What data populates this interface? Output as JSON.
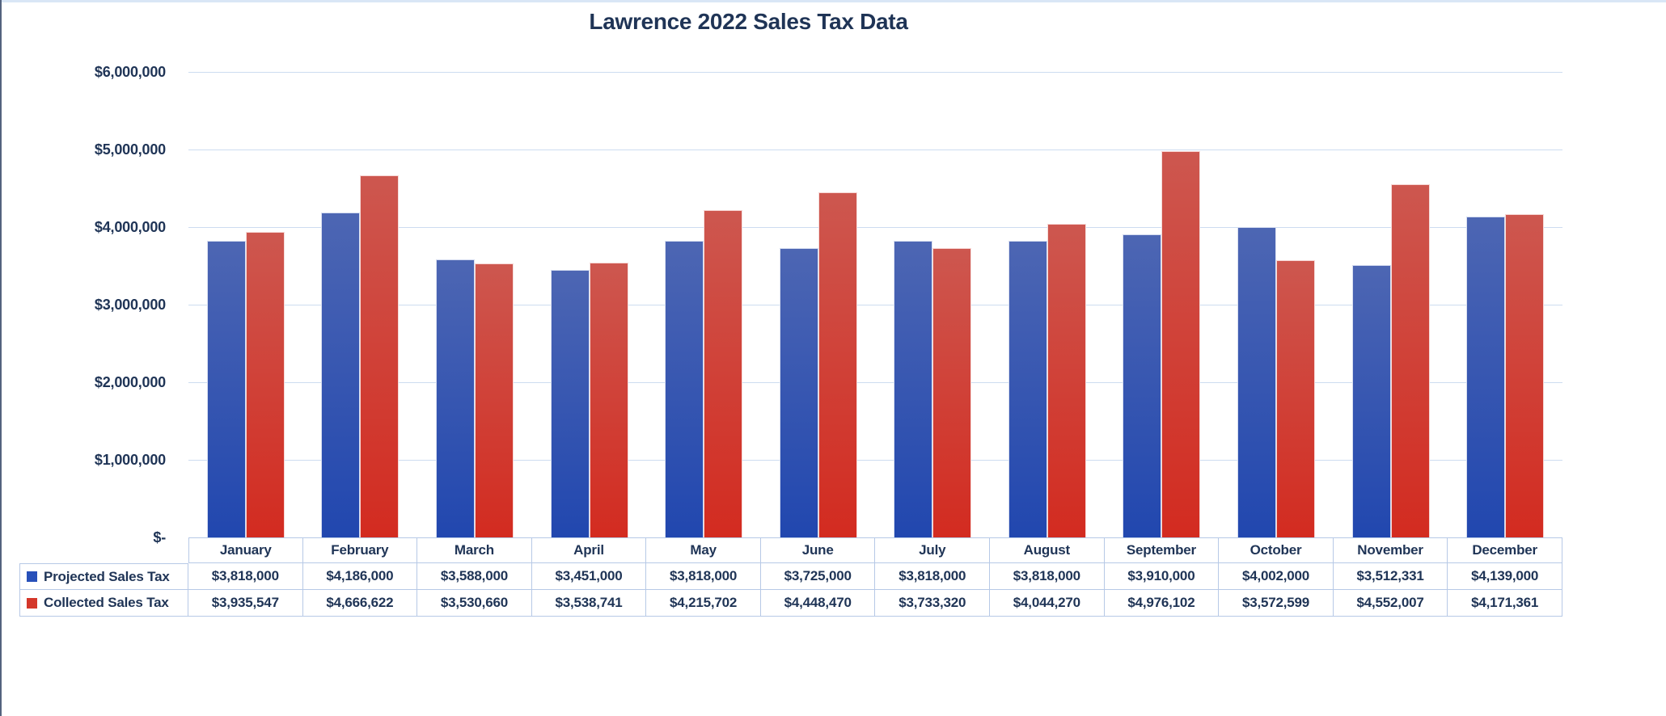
{
  "window": {
    "top_edge_color": "#d9e6f6",
    "left_edge_color": "#54637e",
    "background": "#ffffff"
  },
  "text_color": "#1f3456",
  "chart_data": {
    "type": "bar",
    "title": "Lawrence 2022 Sales Tax Data",
    "categories": [
      "January",
      "February",
      "March",
      "April",
      "May",
      "June",
      "July",
      "August",
      "September",
      "October",
      "November",
      "December"
    ],
    "series": [
      {
        "name": "Projected Sales Tax",
        "color": "#2850b9",
        "gradient_top": "#4d66b3",
        "gradient_bottom": "#2147af",
        "values": [
          3818000,
          4186000,
          3588000,
          3451000,
          3818000,
          3725000,
          3818000,
          3818000,
          3910000,
          4002000,
          3512331,
          4139000
        ]
      },
      {
        "name": "Collected Sales Tax",
        "color": "#d4372a",
        "gradient_top": "#cd574f",
        "gradient_bottom": "#d32b20",
        "values": [
          3935547,
          4666622,
          3530660,
          3538741,
          4215702,
          4448470,
          3733320,
          4044270,
          4976102,
          3572599,
          4552007,
          4171361
        ]
      }
    ],
    "ylim": [
      0,
      6000000
    ],
    "ytick_step": 1000000,
    "ytick_labels": [
      "$-",
      "$1,000,000",
      "$2,000,000",
      "$3,000,000",
      "$4,000,000",
      "$5,000,000",
      "$6,000,000"
    ],
    "grid": true,
    "gridline_color": "#cddcf0",
    "legend_position": "data-table-left"
  },
  "data_table": {
    "border_color": "#b7c9e6",
    "row_labels": [
      "Projected Sales Tax",
      "Collected Sales Tax"
    ],
    "formatted_rows": [
      [
        "$3,818,000",
        "$4,186,000",
        "$3,588,000",
        "$3,451,000",
        "$3,818,000",
        "$3,725,000",
        "$3,818,000",
        "$3,818,000",
        "$3,910,000",
        "$4,002,000",
        "$3,512,331",
        "$4,139,000"
      ],
      [
        "$3,935,547",
        "$4,666,622",
        "$3,530,660",
        "$3,538,741",
        "$4,215,702",
        "$4,448,470",
        "$3,733,320",
        "$4,044,270",
        "$4,976,102",
        "$3,572,599",
        "$4,552,007",
        "$4,171,361"
      ]
    ]
  }
}
